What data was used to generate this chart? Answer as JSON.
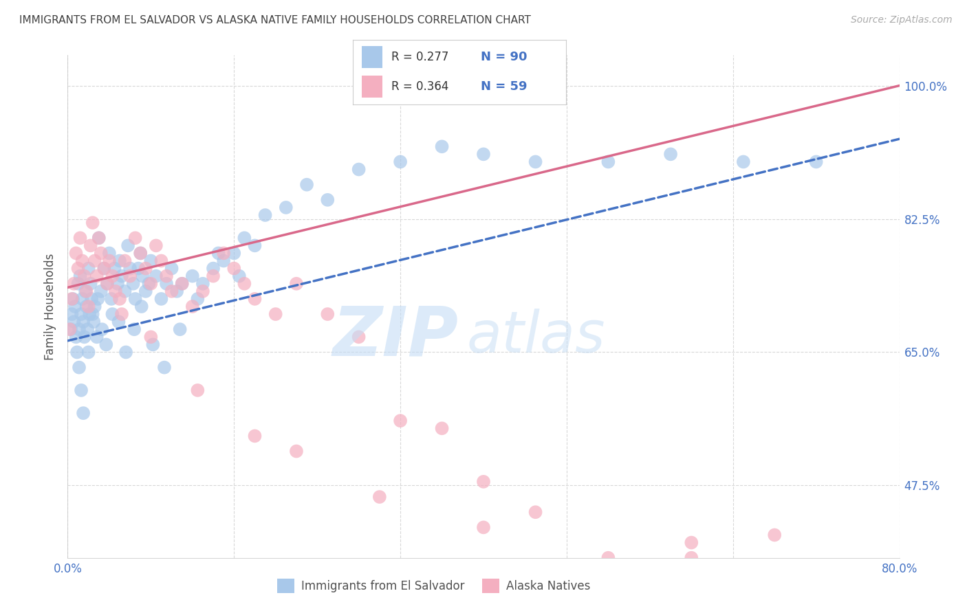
{
  "title": "IMMIGRANTS FROM EL SALVADOR VS ALASKA NATIVE FAMILY HOUSEHOLDS CORRELATION CHART",
  "source": "Source: ZipAtlas.com",
  "ylabel": "Family Households",
  "xlim": [
    0.0,
    80.0
  ],
  "ylim": [
    38.0,
    104.0
  ],
  "yticks": [
    47.5,
    65.0,
    82.5,
    100.0
  ],
  "xtick_vals": [
    0.0,
    16.0,
    32.0,
    48.0,
    64.0,
    80.0
  ],
  "series1_color": "#a8c8ea",
  "series2_color": "#f4afc0",
  "regression1_color": "#4472c4",
  "regression2_color": "#d9688a",
  "label_color": "#4472c4",
  "background_color": "#ffffff",
  "grid_color": "#d8d8d8",
  "title_color": "#404040",
  "blue_x": [
    0.3,
    0.4,
    0.5,
    0.6,
    0.7,
    0.8,
    0.9,
    1.0,
    1.1,
    1.2,
    1.3,
    1.4,
    1.5,
    1.6,
    1.7,
    1.8,
    1.9,
    2.0,
    2.1,
    2.2,
    2.3,
    2.5,
    2.6,
    2.8,
    3.0,
    3.2,
    3.5,
    3.8,
    4.0,
    4.2,
    4.5,
    4.8,
    5.0,
    5.2,
    5.5,
    5.8,
    6.0,
    6.3,
    6.5,
    6.8,
    7.0,
    7.2,
    7.5,
    7.8,
    8.0,
    8.5,
    9.0,
    9.5,
    10.0,
    10.5,
    11.0,
    12.0,
    13.0,
    14.0,
    15.0,
    16.0,
    17.0,
    18.0,
    19.0,
    21.0,
    23.0,
    25.0,
    28.0,
    32.0,
    36.0,
    40.0,
    45.0,
    52.0,
    58.0,
    65.0,
    72.0,
    1.1,
    1.3,
    1.5,
    2.0,
    2.4,
    2.9,
    3.3,
    3.7,
    4.3,
    4.9,
    5.6,
    6.4,
    7.1,
    8.2,
    9.3,
    10.8,
    12.5,
    14.5,
    16.5
  ],
  "blue_y": [
    68,
    70,
    72,
    69,
    71,
    67,
    65,
    74,
    68,
    75,
    70,
    72,
    69,
    67,
    73,
    71,
    68,
    76,
    70,
    74,
    72,
    69,
    71,
    67,
    80,
    73,
    76,
    74,
    78,
    72,
    76,
    74,
    77,
    75,
    73,
    79,
    76,
    74,
    72,
    76,
    78,
    75,
    73,
    74,
    77,
    75,
    72,
    74,
    76,
    73,
    74,
    75,
    74,
    76,
    77,
    78,
    80,
    79,
    83,
    84,
    87,
    85,
    89,
    90,
    92,
    91,
    90,
    90,
    91,
    90,
    90,
    63,
    60,
    57,
    65,
    70,
    72,
    68,
    66,
    70,
    69,
    65,
    68,
    71,
    66,
    63,
    68,
    72,
    78,
    75
  ],
  "pink_x": [
    0.2,
    0.4,
    0.6,
    0.8,
    1.0,
    1.2,
    1.4,
    1.6,
    1.8,
    2.0,
    2.2,
    2.4,
    2.6,
    2.8,
    3.0,
    3.2,
    3.5,
    3.8,
    4.0,
    4.3,
    4.6,
    5.0,
    5.5,
    6.0,
    6.5,
    7.0,
    7.5,
    8.0,
    8.5,
    9.0,
    9.5,
    10.0,
    11.0,
    12.0,
    13.0,
    14.0,
    15.0,
    16.0,
    17.0,
    18.0,
    20.0,
    22.0,
    25.0,
    28.0,
    32.0,
    36.0,
    40.0,
    45.0,
    52.0,
    60.0,
    68.0,
    5.2,
    8.0,
    12.5,
    18.0,
    22.0,
    30.0,
    40.0,
    60.0
  ],
  "pink_y": [
    68,
    72,
    74,
    78,
    76,
    80,
    77,
    75,
    73,
    71,
    79,
    82,
    77,
    75,
    80,
    78,
    76,
    74,
    77,
    75,
    73,
    72,
    77,
    75,
    80,
    78,
    76,
    74,
    79,
    77,
    75,
    73,
    74,
    71,
    73,
    75,
    78,
    76,
    74,
    72,
    70,
    74,
    70,
    67,
    56,
    55,
    48,
    44,
    38,
    40,
    41,
    70,
    67,
    60,
    54,
    52,
    46,
    42,
    38
  ],
  "reg1_x0": 0,
  "reg1_y0": 66.5,
  "reg1_x1": 80,
  "reg1_y1": 93.0,
  "reg2_x0": 0,
  "reg2_y0": 73.5,
  "reg2_x1": 80,
  "reg2_y1": 100.0,
  "legend_r1": "R = 0.277",
  "legend_n1": "N = 90",
  "legend_r2": "R = 0.364",
  "legend_n2": "N = 59",
  "watermark": "ZIPatlas",
  "watermark_zip_color": "#c8ddf0",
  "watermark_atlas_color": "#c8ddf0"
}
